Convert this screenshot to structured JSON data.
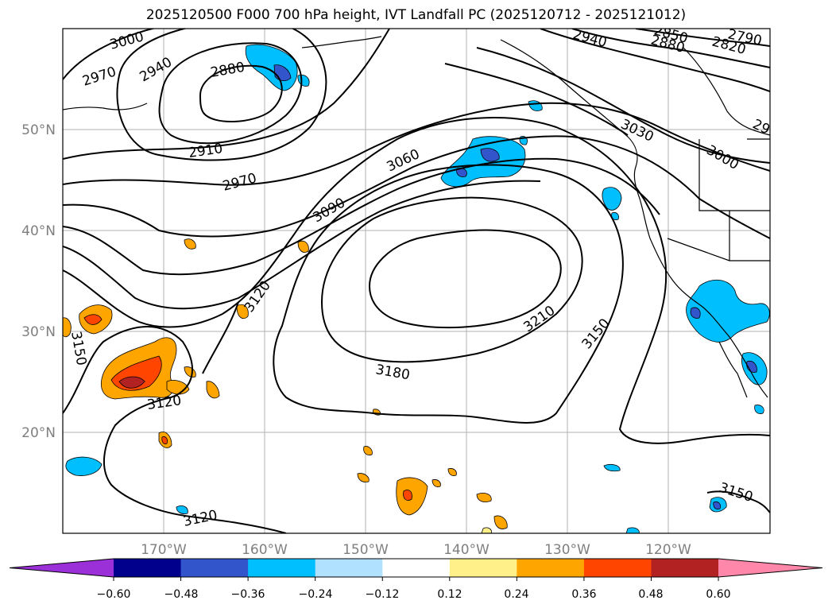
{
  "title": "2025120500 F000 700 hPa height, IVT Landfall PC (2025120712 - 2025121012)",
  "map": {
    "longitude_labels": [
      "170°W",
      "160°W",
      "150°W",
      "140°W",
      "130°W",
      "120°W"
    ],
    "latitude_labels": [
      "50°N",
      "40°N",
      "30°N",
      "20°N"
    ],
    "contour_labels": [
      "3000",
      "2970",
      "2940",
      "2880",
      "2910",
      "2970",
      "3060",
      "3090",
      "3120",
      "3150",
      "3120",
      "3180",
      "3210",
      "3150",
      "3030",
      "3000",
      "2940",
      "2880",
      "2820",
      "2790",
      "2850",
      "29",
      "3150",
      "3120"
    ]
  },
  "colorbar": {
    "ticks": [
      "−0.60",
      "−0.48",
      "−0.36",
      "−0.24",
      "−0.12",
      "0.12",
      "0.24",
      "0.36",
      "0.48",
      "0.60"
    ],
    "colors": [
      "#9b30d8",
      "#00008c",
      "#3355cc",
      "#00bfff",
      "#b0e2ff",
      "#ffffff",
      "#fff08a",
      "#ffa500",
      "#ff4500",
      "#b22222",
      "#ff88aa"
    ]
  }
}
